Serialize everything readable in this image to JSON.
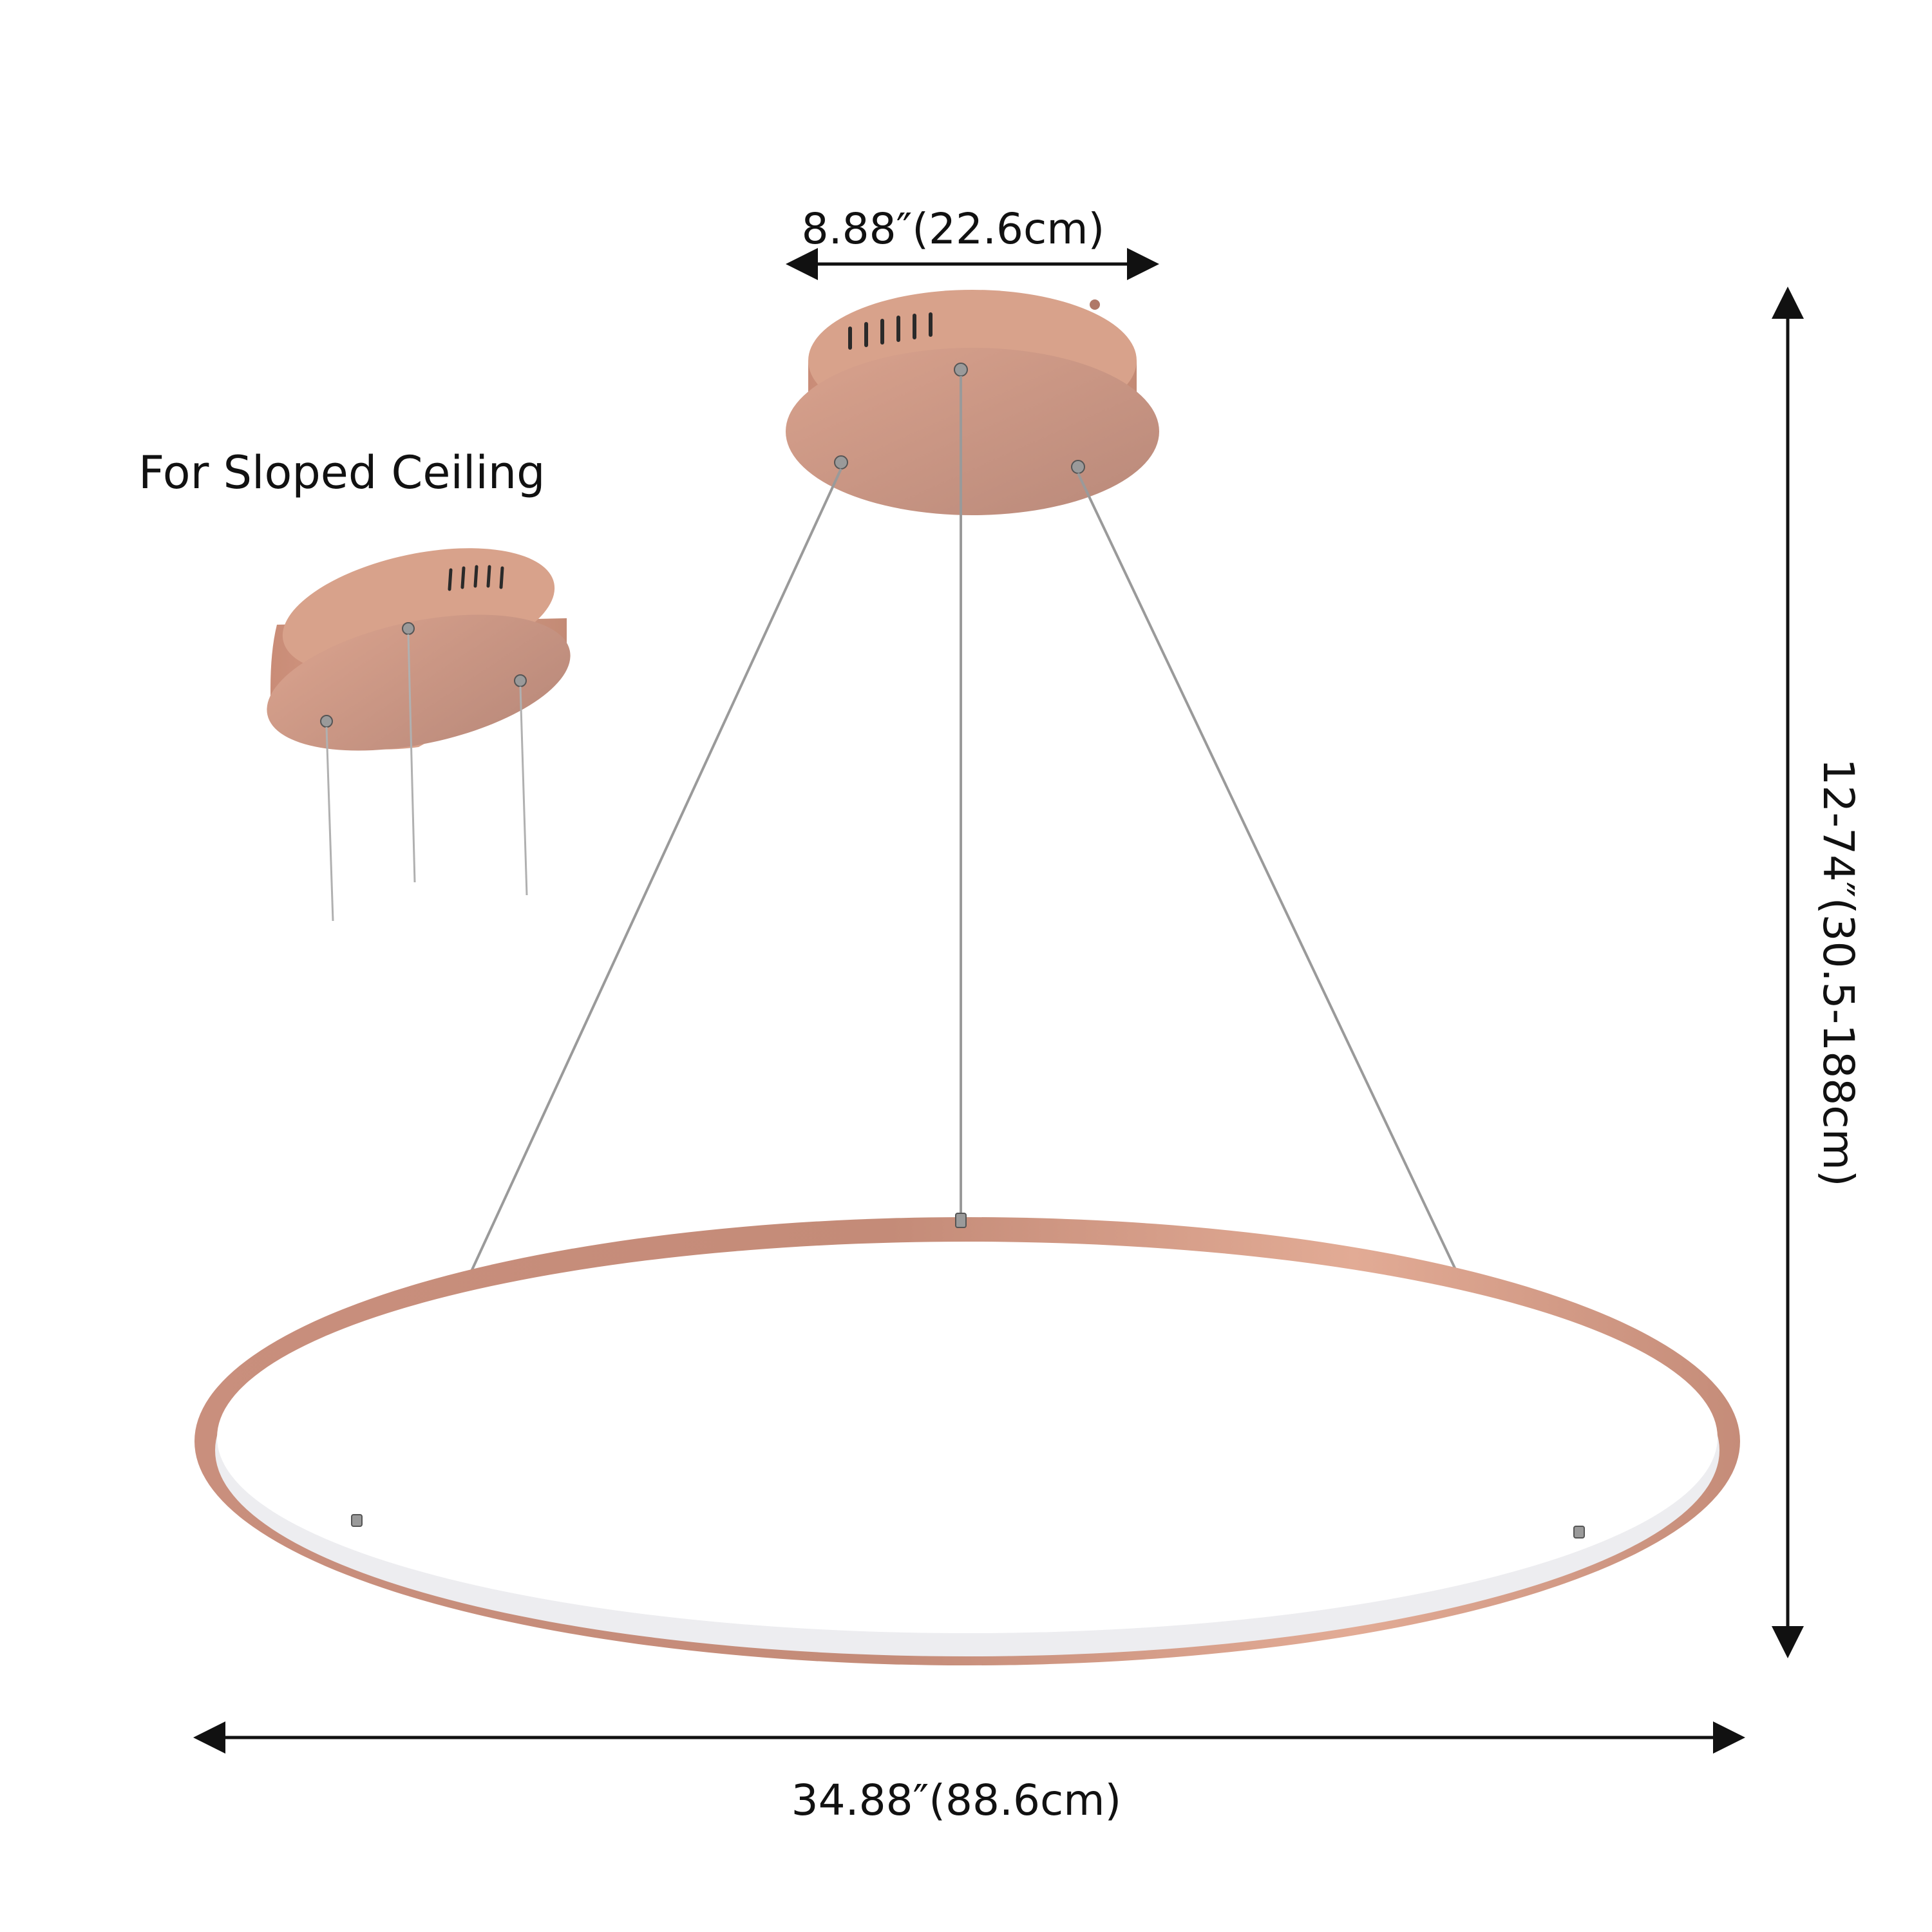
{
  "labels": {
    "sloped_ceiling": "For Sloped Ceiling",
    "canopy_width": "8.88″(22.6cm)",
    "ring_diameter": "34.88″(88.6cm)",
    "height_range": "12-74″(30.5-188cm)"
  },
  "colors": {
    "background": "#ffffff",
    "canopy_top": "#d9a58f",
    "canopy_side": "#c98f79",
    "canopy_face": "#b98a7b",
    "ring_outer": "#c69180",
    "ring_inner": "#e9e9ec",
    "cable": "#9a9a9a",
    "arrow": "#111111"
  }
}
